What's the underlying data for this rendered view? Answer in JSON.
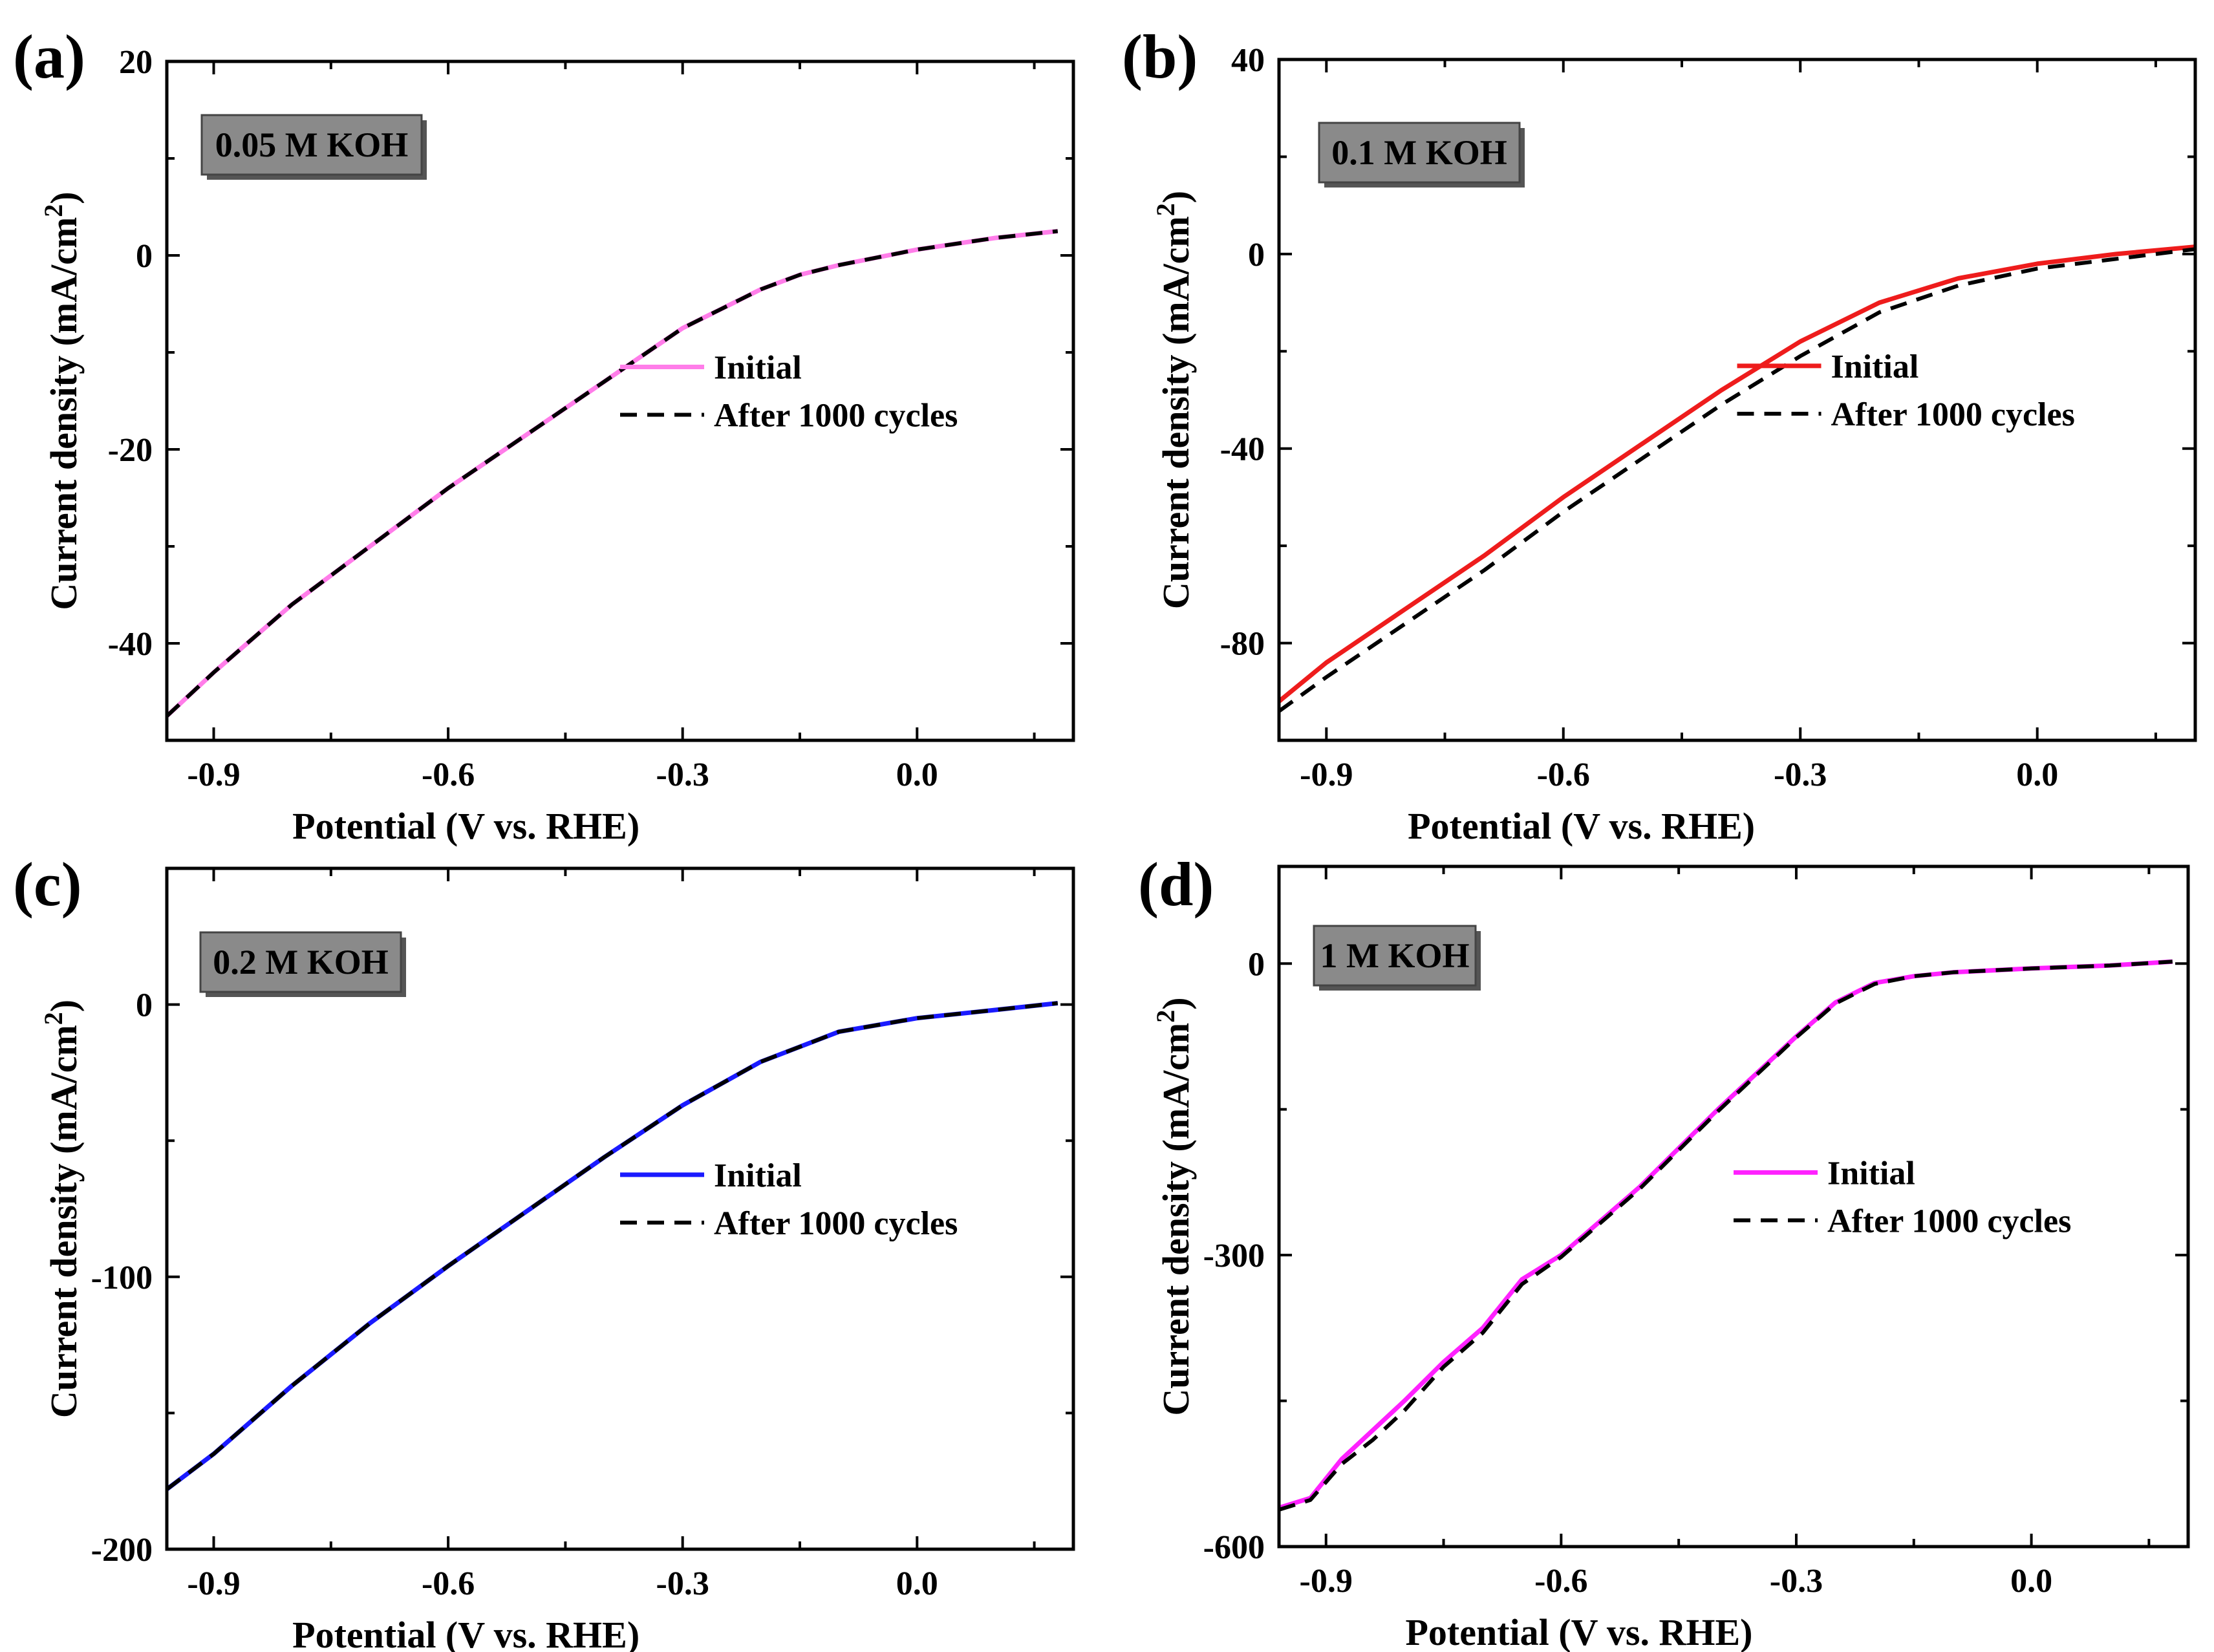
{
  "chart_data": [
    {
      "type": "line",
      "panel": "(a)",
      "badge": "0.05 M KOH",
      "xlabel": "Potential (V vs. RHE)",
      "ylabel_main": "Current density (mA/cm",
      "ylabel_sup": "2",
      "ylabel_end": ")",
      "xlim": [
        -0.96,
        0.2
      ],
      "ylim": [
        -50,
        20
      ],
      "xticks": [
        -0.9,
        -0.6,
        -0.3,
        0.0
      ],
      "xtick_labels": [
        "-0.9",
        "-0.6",
        "-0.3",
        "0.0"
      ],
      "yticks": [
        -40,
        -20,
        0,
        20
      ],
      "ytick_labels": [
        "-40",
        "-20",
        "0",
        "20"
      ],
      "legend": [
        "Initial",
        "After 1000 cycles"
      ],
      "series": [
        {
          "name": "Initial",
          "color": "#ff7de9",
          "style": "solid",
          "x": [
            -0.96,
            -0.9,
            -0.8,
            -0.7,
            -0.6,
            -0.5,
            -0.4,
            -0.3,
            -0.2,
            -0.15,
            -0.1,
            0.0,
            0.1,
            0.18
          ],
          "y": [
            -47.5,
            -43,
            -36,
            -30,
            -24,
            -18.5,
            -13,
            -7.5,
            -3.5,
            -2,
            -1,
            0.6,
            1.8,
            2.5
          ]
        },
        {
          "name": "After 1000 cycles",
          "color": "#000000",
          "style": "dashed",
          "x": [
            -0.96,
            -0.9,
            -0.8,
            -0.7,
            -0.6,
            -0.5,
            -0.4,
            -0.3,
            -0.2,
            -0.15,
            -0.1,
            0.0,
            0.1,
            0.18
          ],
          "y": [
            -47.5,
            -43,
            -36,
            -30,
            -24,
            -18.5,
            -13,
            -7.5,
            -3.5,
            -2,
            -1,
            0.6,
            1.8,
            2.5
          ]
        }
      ]
    },
    {
      "type": "line",
      "panel": "(b)",
      "badge": "0.1 M KOH",
      "xlabel": "Potential (V vs. RHE)",
      "ylabel_main": "Current density (mA/cm",
      "ylabel_sup": "2",
      "ylabel_end": ")",
      "xlim": [
        -0.96,
        0.2
      ],
      "ylim": [
        -100,
        40
      ],
      "xticks": [
        -0.9,
        -0.6,
        -0.3,
        0.0
      ],
      "xtick_labels": [
        "-0.9",
        "-0.6",
        "-0.3",
        "0.0"
      ],
      "yticks": [
        -80,
        -40,
        0,
        40
      ],
      "ytick_labels": [
        "-80",
        "-40",
        "0",
        "40"
      ],
      "legend": [
        "Initial",
        "After 1000 cycles"
      ],
      "series": [
        {
          "name": "Initial",
          "color": "#ee1c1c",
          "style": "solid",
          "x": [
            -0.96,
            -0.9,
            -0.8,
            -0.7,
            -0.6,
            -0.5,
            -0.4,
            -0.3,
            -0.2,
            -0.1,
            0.0,
            0.1,
            0.2
          ],
          "y": [
            -92,
            -84,
            -73,
            -62,
            -50,
            -39,
            -28,
            -18,
            -10,
            -5,
            -2,
            0,
            1.5
          ]
        },
        {
          "name": "After 1000 cycles",
          "color": "#000000",
          "style": "dashed",
          "x": [
            -0.96,
            -0.9,
            -0.8,
            -0.7,
            -0.6,
            -0.5,
            -0.4,
            -0.3,
            -0.2,
            -0.1,
            0.0,
            0.1,
            0.2
          ],
          "y": [
            -94,
            -87,
            -76,
            -65,
            -53,
            -42,
            -31,
            -21,
            -12,
            -6.5,
            -3,
            -1,
            1
          ]
        }
      ]
    },
    {
      "type": "line",
      "panel": "(c)",
      "badge": "0.2 M KOH",
      "xlabel": "Potential (V vs. RHE)",
      "ylabel_main": "Current density (mA/cm",
      "ylabel_sup": "2",
      "ylabel_end": ")",
      "xlim": [
        -0.96,
        0.2
      ],
      "ylim": [
        -200,
        50
      ],
      "xticks": [
        -0.9,
        -0.6,
        -0.3,
        0.0
      ],
      "xtick_labels": [
        "-0.9",
        "-0.6",
        "-0.3",
        "0.0"
      ],
      "yticks": [
        -200,
        -100,
        0
      ],
      "ytick_labels": [
        "-200",
        "-100",
        "0"
      ],
      "legend": [
        "Initial",
        "After 1000 cycles"
      ],
      "series": [
        {
          "name": "Initial",
          "color": "#1a1aff",
          "style": "solid",
          "x": [
            -0.96,
            -0.9,
            -0.8,
            -0.7,
            -0.6,
            -0.5,
            -0.4,
            -0.3,
            -0.2,
            -0.1,
            0.0,
            0.1,
            0.18
          ],
          "y": [
            -178,
            -165,
            -140,
            -117,
            -96,
            -76,
            -56,
            -37,
            -21,
            -10,
            -5,
            -2,
            0.5
          ]
        },
        {
          "name": "After 1000 cycles",
          "color": "#000000",
          "style": "dashed",
          "x": [
            -0.96,
            -0.9,
            -0.8,
            -0.7,
            -0.6,
            -0.5,
            -0.4,
            -0.3,
            -0.2,
            -0.1,
            0.0,
            0.1,
            0.18
          ],
          "y": [
            -178,
            -165,
            -140,
            -117,
            -96,
            -76,
            -56,
            -37,
            -21,
            -10,
            -5,
            -2,
            0.5
          ]
        }
      ]
    },
    {
      "type": "line",
      "panel": "(d)",
      "badge": "1 M KOH",
      "xlabel": "Potential (V vs. RHE)",
      "ylabel_main": "Current density (mA/cm",
      "ylabel_sup": "2",
      "ylabel_end": ")",
      "xlim": [
        -0.96,
        0.2
      ],
      "ylim": [
        -600,
        100
      ],
      "xticks": [
        -0.9,
        -0.6,
        -0.3,
        0.0
      ],
      "xtick_labels": [
        "-0.9",
        "-0.6",
        "-0.3",
        "0.0"
      ],
      "yticks": [
        -600,
        -300,
        0
      ],
      "ytick_labels": [
        "-600",
        "-300",
        "0"
      ],
      "legend": [
        "Initial",
        "After 1000 cycles"
      ],
      "series": [
        {
          "name": "Initial",
          "color": "#ff21ff",
          "style": "solid",
          "x": [
            -0.96,
            -0.92,
            -0.88,
            -0.84,
            -0.8,
            -0.75,
            -0.7,
            -0.65,
            -0.6,
            -0.5,
            -0.4,
            -0.3,
            -0.25,
            -0.2,
            -0.15,
            -0.1,
            0.0,
            0.1,
            0.18
          ],
          "y": [
            -560,
            -550,
            -510,
            -480,
            -450,
            -410,
            -375,
            -325,
            -300,
            -230,
            -150,
            -75,
            -40,
            -20,
            -13,
            -9,
            -5,
            -2,
            2
          ]
        },
        {
          "name": "After 1000 cycles",
          "color": "#000000",
          "style": "dashed",
          "x": [
            -0.96,
            -0.92,
            -0.88,
            -0.84,
            -0.8,
            -0.75,
            -0.7,
            -0.65,
            -0.6,
            -0.5,
            -0.4,
            -0.3,
            -0.25,
            -0.2,
            -0.15,
            -0.1,
            0.0,
            0.1,
            0.18
          ],
          "y": [
            -562,
            -552,
            -515,
            -490,
            -460,
            -415,
            -380,
            -330,
            -302,
            -232,
            -152,
            -76,
            -41,
            -21,
            -13,
            -9,
            -5,
            -2,
            2
          ]
        }
      ]
    }
  ]
}
